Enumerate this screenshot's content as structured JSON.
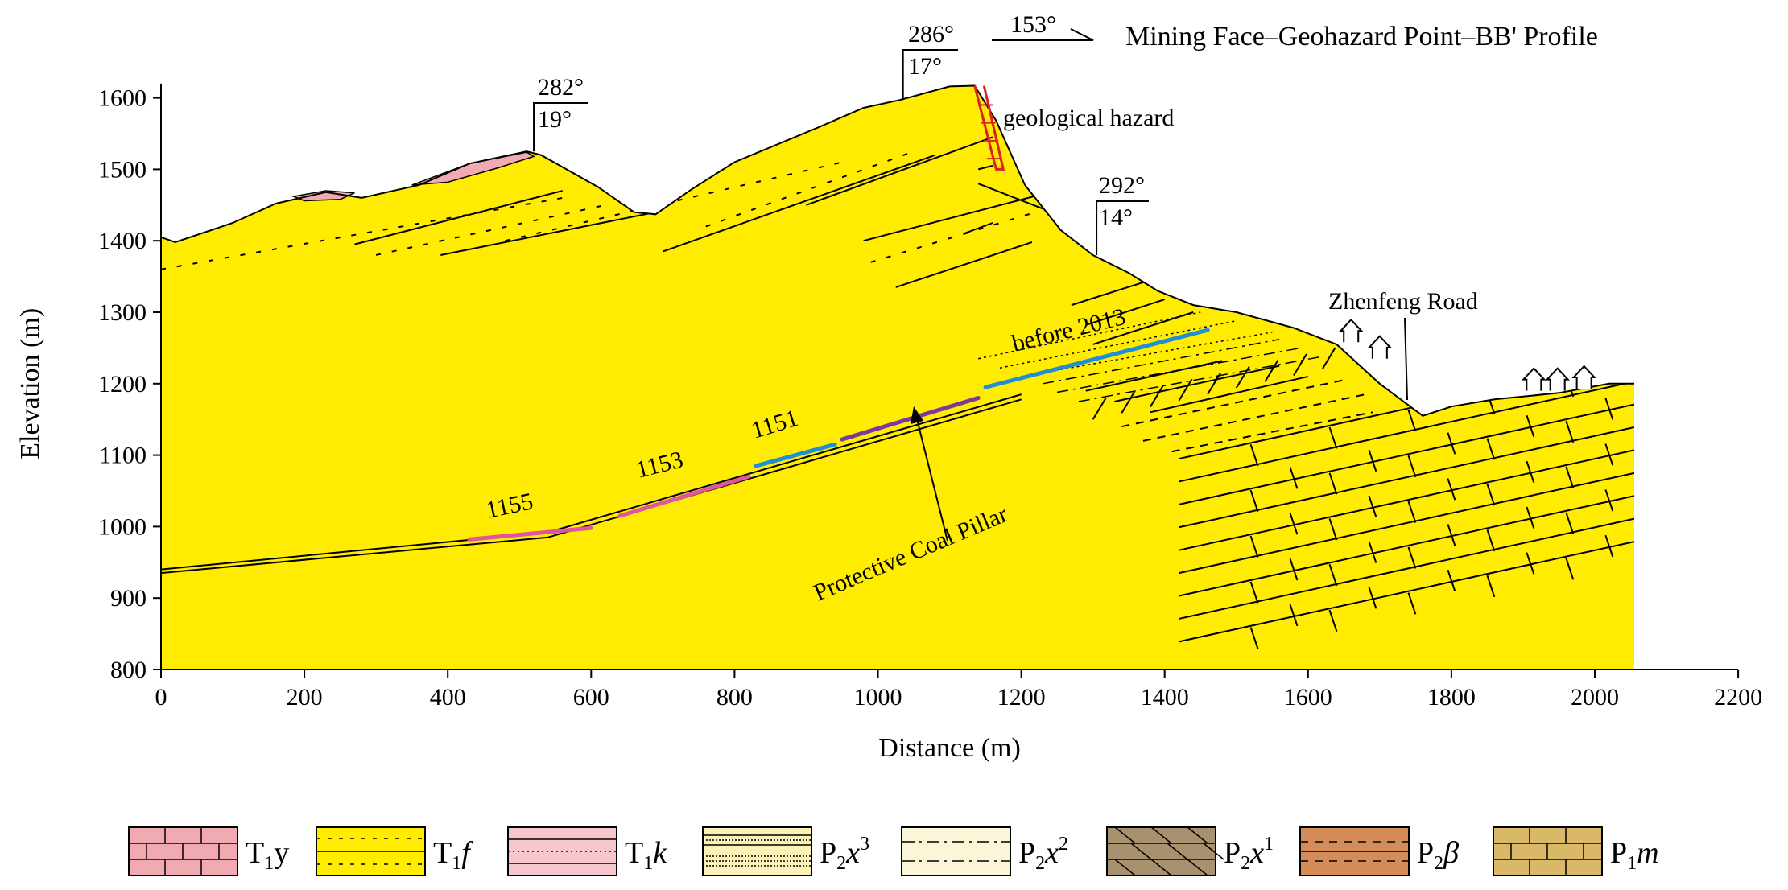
{
  "figure": {
    "title": "Mining Face–Geohazard Point–BB' Profile",
    "profile_azimuth": "153°",
    "x_axis": {
      "label": "Distance (m)",
      "min": 0,
      "max": 2200,
      "ticks": [
        "0",
        "200",
        "400",
        "600",
        "800",
        "1000",
        "1200",
        "1400",
        "1600",
        "1800",
        "2000",
        "2200"
      ]
    },
    "y_axis": {
      "label": "Elevation (m)",
      "min": 800,
      "max": 1600,
      "ticks": [
        "800",
        "900",
        "1000",
        "1100",
        "1200",
        "1300",
        "1400",
        "1500",
        "1600"
      ]
    }
  },
  "attitudes": [
    {
      "strike": "282°",
      "dip": "19°"
    },
    {
      "strike": "286°",
      "dip": "17°"
    },
    {
      "strike": "292°",
      "dip": "14°"
    }
  ],
  "annotations": {
    "hazard": "geological hazard",
    "road": "Zhenfeng Road",
    "before": "before 2013",
    "pillar": "Protective Coal Pillar",
    "face_1155": "1155",
    "face_1153": "1153",
    "face_1151": "1151"
  },
  "surface_profile": [
    [
      0,
      1405
    ],
    [
      20,
      1398
    ],
    [
      100,
      1425
    ],
    [
      160,
      1452
    ],
    [
      230,
      1468
    ],
    [
      280,
      1460
    ],
    [
      360,
      1478
    ],
    [
      430,
      1508
    ],
    [
      510,
      1525
    ],
    [
      530,
      1520
    ],
    [
      610,
      1475
    ],
    [
      660,
      1440
    ],
    [
      690,
      1437
    ],
    [
      740,
      1472
    ],
    [
      800,
      1510
    ],
    [
      860,
      1535
    ],
    [
      920,
      1560
    ],
    [
      980,
      1586
    ],
    [
      1030,
      1597
    ],
    [
      1100,
      1616
    ],
    [
      1135,
      1617
    ],
    [
      1165,
      1568
    ],
    [
      1205,
      1478
    ],
    [
      1255,
      1415
    ],
    [
      1300,
      1380
    ],
    [
      1350,
      1355
    ],
    [
      1390,
      1330
    ],
    [
      1440,
      1310
    ],
    [
      1500,
      1300
    ],
    [
      1580,
      1278
    ],
    [
      1640,
      1255
    ],
    [
      1700,
      1200
    ],
    [
      1760,
      1155
    ],
    [
      1800,
      1168
    ],
    [
      1860,
      1178
    ],
    [
      1950,
      1187
    ],
    [
      2020,
      1200
    ],
    [
      2055,
      1200
    ]
  ],
  "legend": [
    {
      "key": "T1y",
      "base": "T",
      "sub": "1",
      "rest": "y",
      "italic": false,
      "sup": "",
      "color": "#f2aab2",
      "pattern": "brick"
    },
    {
      "key": "T1f",
      "base": "T",
      "sub": "1",
      "rest": "f",
      "italic": true,
      "sup": "",
      "color": "#ffec00",
      "pattern": "dashed"
    },
    {
      "key": "T1k",
      "base": "T",
      "sub": "1",
      "rest": "k",
      "italic": true,
      "sup": "",
      "color": "#f5c6cd",
      "pattern": "dotted"
    },
    {
      "key": "P2x3",
      "base": "P",
      "sub": "2",
      "rest": "x",
      "italic": true,
      "sup": "3",
      "color": "#fdf2b5",
      "pattern": "fine"
    },
    {
      "key": "P2x2",
      "base": "P",
      "sub": "2",
      "rest": "x",
      "italic": true,
      "sup": "2",
      "color": "#fbf6d8",
      "pattern": "dashdot"
    },
    {
      "key": "P2x1",
      "base": "P",
      "sub": "2",
      "rest": "x",
      "italic": true,
      "sup": "1",
      "color": "#a8916f",
      "pattern": "slant"
    },
    {
      "key": "P2b",
      "base": "P",
      "sub": "2",
      "rest": "β",
      "italic": true,
      "sup": "",
      "color": "#d48c58",
      "pattern": "dashlines"
    },
    {
      "key": "P1m",
      "base": "P",
      "sub": "1",
      "rest": "m",
      "italic": true,
      "sup": "",
      "color": "#d9b86a",
      "pattern": "brick"
    }
  ],
  "colors": {
    "T1y": "#f2aab2",
    "T1f": "#ffec00",
    "T1k": "#f5c6cd",
    "P2x3": "#fdf2b5",
    "P2x2": "#fbf6d8",
    "P2x1": "#a8916f",
    "P2b": "#d48c58",
    "P1m": "#d9b86a",
    "face_pink": "#e0559e",
    "face_blue": "#1e8fd6",
    "face_purple": "#7b3a9b",
    "hazard": "#e02020"
  }
}
